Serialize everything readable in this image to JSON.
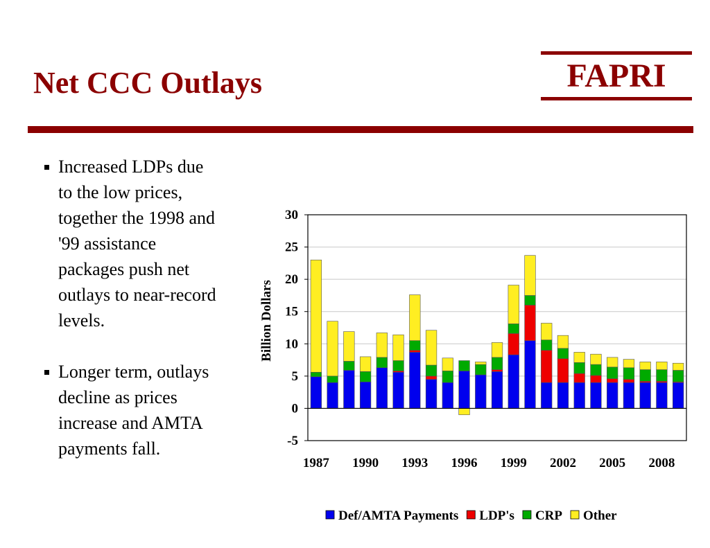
{
  "slide": {
    "title": "Net CCC Outlays",
    "logo_text": "FAPRI",
    "accent_color": "#8b0000"
  },
  "bullets": [
    {
      "text": "Increased LDPs due to the low prices, together the 1998 and '99 assistance packages push net outlays to near-record levels."
    },
    {
      "text": "Longer term, outlays decline as prices increase and AMTA payments fall."
    }
  ],
  "chart_data": {
    "type": "bar",
    "stacked": true,
    "categories": [
      "1987",
      "1988",
      "1989",
      "1990",
      "1991",
      "1992",
      "1993",
      "1994",
      "1995",
      "1996",
      "1997",
      "1998",
      "1999",
      "2000",
      "2001",
      "2002",
      "2003",
      "2004",
      "2005",
      "2006",
      "2007",
      "2008",
      "2009"
    ],
    "tick_labels": [
      "1987",
      "1990",
      "1993",
      "1996",
      "1999",
      "2002",
      "2005",
      "2008"
    ],
    "ylabel": "Billion Dollars",
    "ylim": [
      -5,
      30
    ],
    "yticks": [
      -5,
      0,
      5,
      10,
      15,
      20,
      25,
      30
    ],
    "grid": true,
    "legend_position": "bottom",
    "series": [
      {
        "name": "Def/AMTA Payments",
        "color": "#0000ee",
        "values": [
          4.9,
          4.0,
          5.9,
          4.1,
          6.3,
          5.6,
          8.7,
          4.5,
          4.0,
          5.8,
          5.2,
          5.7,
          8.3,
          10.5,
          4.0,
          4.0,
          4.0,
          4.0,
          4.0,
          4.0,
          4.0,
          4.0,
          4.0
        ]
      },
      {
        "name": "LDP's",
        "color": "#ee0000",
        "values": [
          0.0,
          0.0,
          0.0,
          0.0,
          0.0,
          0.2,
          0.3,
          0.5,
          0.0,
          0.0,
          0.0,
          0.3,
          3.3,
          5.5,
          5.0,
          3.7,
          1.4,
          1.1,
          0.6,
          0.5,
          0.2,
          0.2,
          0.1
        ]
      },
      {
        "name": "CRP",
        "color": "#00aa00",
        "values": [
          0.7,
          1.0,
          1.4,
          1.6,
          1.6,
          1.6,
          1.5,
          1.7,
          1.8,
          1.6,
          1.6,
          1.9,
          1.5,
          1.5,
          1.6,
          1.6,
          1.7,
          1.7,
          1.8,
          1.8,
          1.8,
          1.8,
          1.8
        ]
      },
      {
        "name": "Other",
        "color": "#ffee22",
        "values": [
          17.4,
          8.5,
          4.6,
          2.3,
          3.8,
          4.0,
          7.1,
          5.4,
          2.0,
          -1.0,
          0.4,
          2.3,
          6.0,
          6.2,
          2.6,
          2.0,
          1.6,
          1.6,
          1.5,
          1.3,
          1.2,
          1.2,
          1.1
        ]
      }
    ]
  }
}
